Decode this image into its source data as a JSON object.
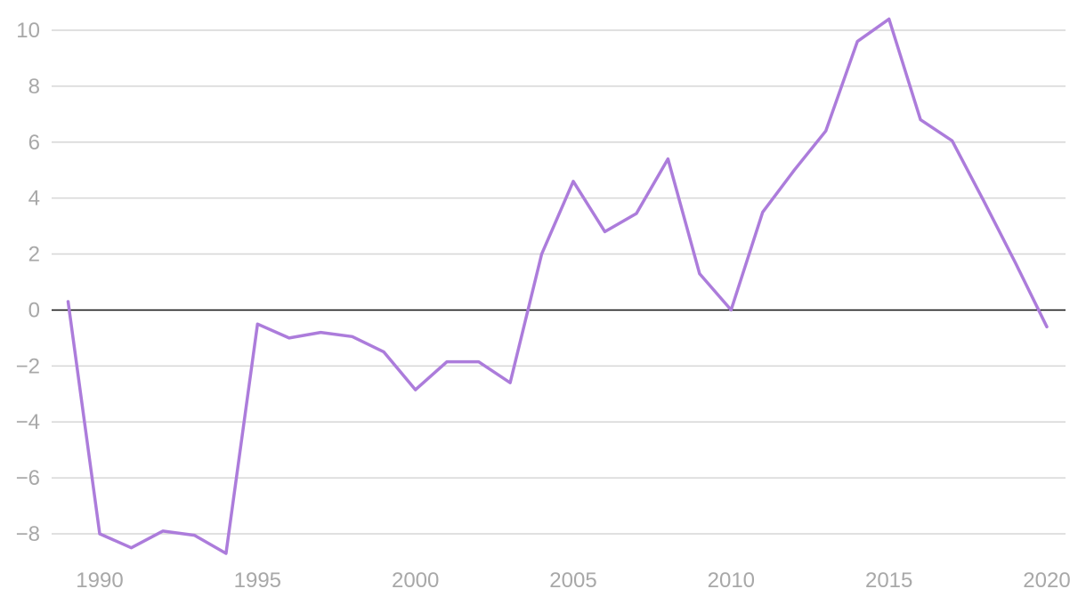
{
  "chart_data": {
    "type": "line",
    "title": "",
    "xlabel": "",
    "ylabel": "",
    "x": [
      1989,
      1990,
      1991,
      1992,
      1993,
      1994,
      1995,
      1996,
      1997,
      1998,
      1999,
      2000,
      2001,
      2002,
      2003,
      2004,
      2005,
      2006,
      2007,
      2008,
      2009,
      2010,
      2011,
      2012,
      2013,
      2014,
      2015,
      2016,
      2017,
      2018,
      2019,
      2020
    ],
    "series": [
      {
        "values": [
          0.3,
          -8.0,
          -8.5,
          -7.9,
          -8.05,
          -8.7,
          -0.5,
          -1.0,
          -0.8,
          -0.95,
          -1.5,
          -2.85,
          -1.85,
          -1.85,
          -2.6,
          2.0,
          4.6,
          2.8,
          3.45,
          5.4,
          1.3,
          0.0,
          3.5,
          5.0,
          6.4,
          9.6,
          10.4,
          6.8,
          6.05,
          3.9,
          1.7,
          -0.6
        ],
        "color": "#ac7cdb"
      }
    ],
    "xticks": [
      1990,
      1995,
      2000,
      2005,
      2010,
      2015,
      2020
    ],
    "yticks": [
      -8,
      -6,
      -4,
      -2,
      0,
      2,
      4,
      6,
      8,
      10
    ],
    "xtick_labels": [
      "1990",
      "1995",
      "2000",
      "2005",
      "2010",
      "2015",
      "2020"
    ],
    "ytick_labels": [
      "−8",
      "−6",
      "−4",
      "−2",
      "0",
      "2",
      "4",
      "6",
      "8",
      "10"
    ],
    "xlim": [
      1988.4,
      2020.6
    ],
    "ylim": [
      -8.9,
      10.5
    ],
    "grid": true,
    "zero_line": true,
    "legend": "none"
  }
}
